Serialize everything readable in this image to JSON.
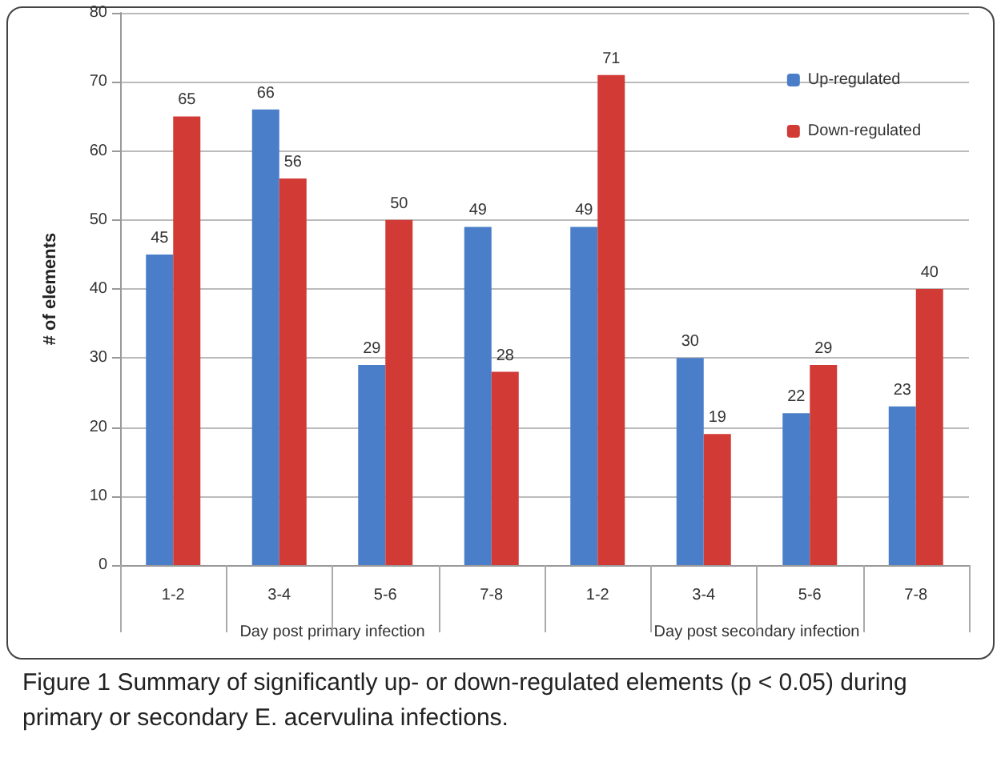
{
  "chart_data": {
    "type": "bar",
    "title": "Figure 1 Summary of significantly up- or down-regulated elements (p < 0.05) during primary or secondary E. acervulina infections.",
    "ylabel": "# of elements",
    "categories": [
      "1-2",
      "3-4",
      "5-6",
      "7-8",
      "1-2",
      "3-4",
      "5-6",
      "7-8"
    ],
    "series": [
      {
        "name": "Up-regulated",
        "color": "#4a7ec8",
        "values": [
          45,
          66,
          29,
          49,
          49,
          30,
          22,
          23
        ]
      },
      {
        "name": "Down-regulated",
        "color": "#d23a36",
        "values": [
          65,
          56,
          50,
          28,
          71,
          19,
          29,
          40
        ]
      }
    ],
    "annotations": [
      "Day post primary infection",
      "Day post secondary infection"
    ],
    "ylim": [
      0,
      80
    ],
    "yticks": [
      0,
      10,
      20,
      30,
      40,
      50,
      60,
      70,
      80
    ],
    "grid": "y",
    "legend": "top right",
    "data_labels": true
  }
}
